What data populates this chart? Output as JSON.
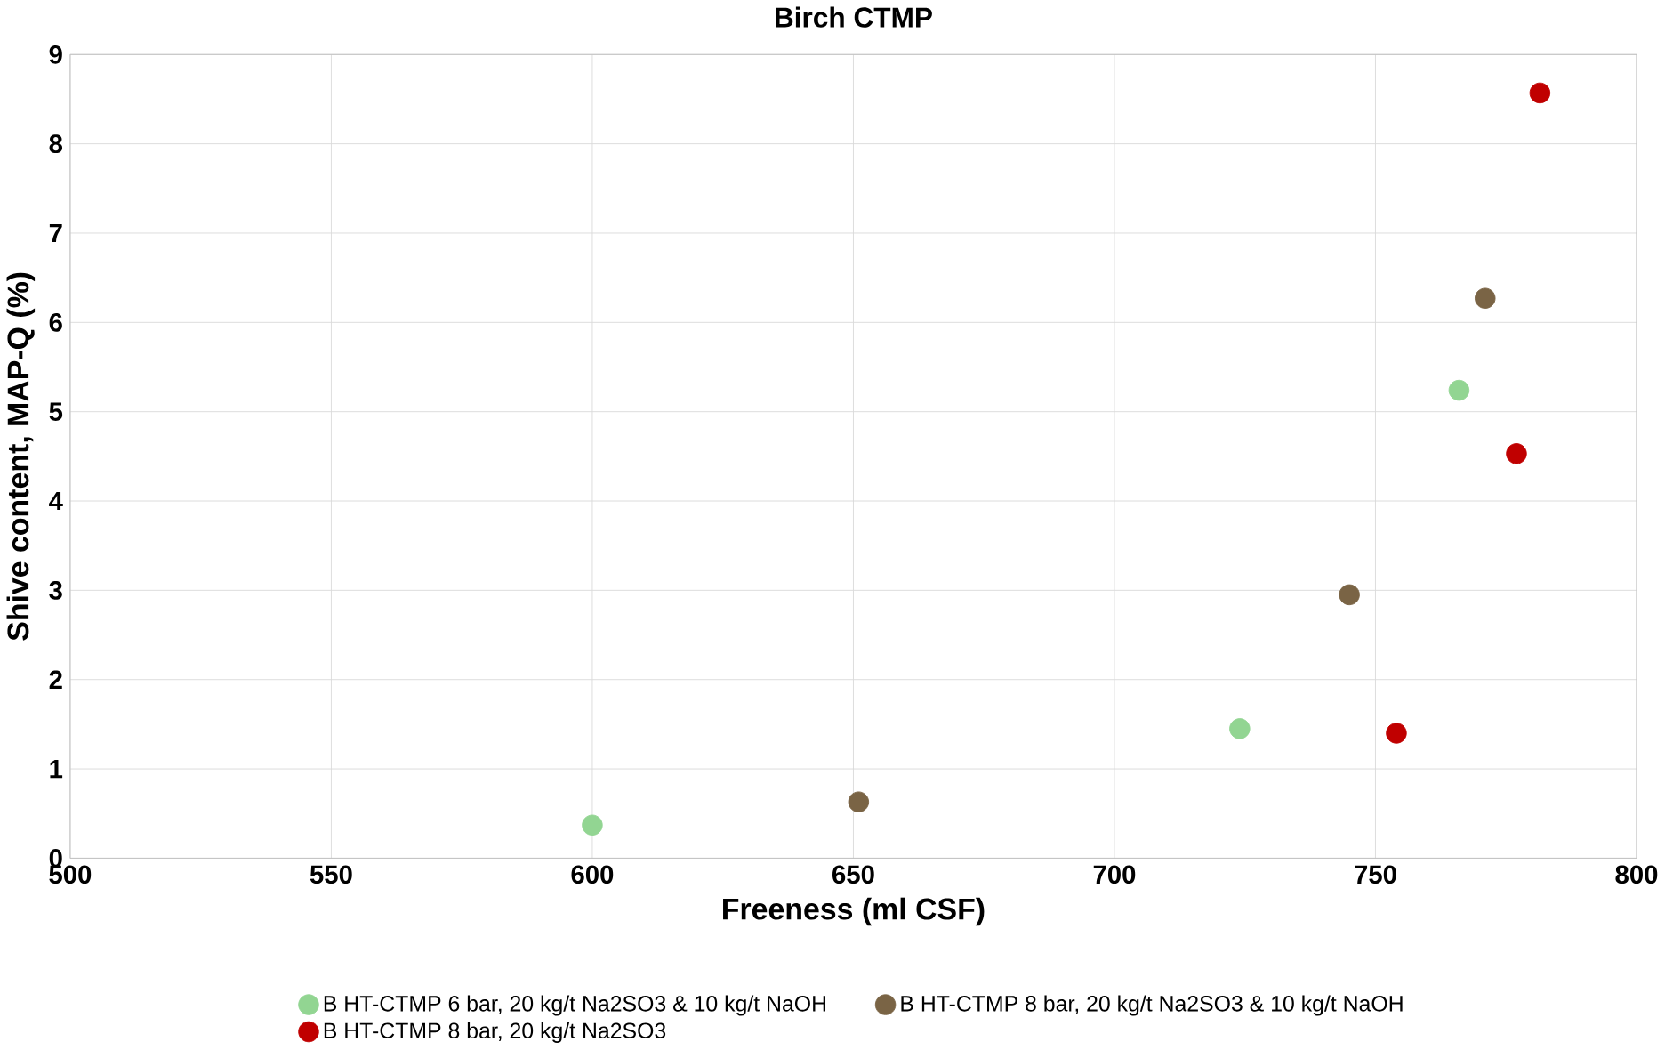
{
  "chart_data": {
    "type": "scatter",
    "title": "Birch CTMP",
    "xlabel": "Freeness (ml CSF)",
    "ylabel": "Shive content, MAP-Q (%)",
    "xlim": [
      500,
      800
    ],
    "xticks": [
      500,
      550,
      600,
      650,
      700,
      750,
      800
    ],
    "ylim": [
      0,
      9
    ],
    "yticks": [
      0,
      1,
      2,
      3,
      4,
      5,
      6,
      7,
      8,
      9
    ],
    "grid": true,
    "legend": "bottom",
    "marker": "circle",
    "series": [
      {
        "name": "B HT-CTMP 6 bar, 20 kg/t Na2SO3 & 10 kg/t NaOH",
        "color": "#92d592",
        "x": [
          600,
          724,
          766
        ],
        "values": [
          0.37,
          1.45,
          5.24
        ]
      },
      {
        "name": "B HT-CTMP 8 bar, 20 kg/t Na2SO3 & 10 kg/t NaOH",
        "color": "#7a6445",
        "x": [
          651,
          745,
          771
        ],
        "values": [
          0.63,
          2.95,
          6.27
        ]
      },
      {
        "name": "B HT-CTMP 8 bar, 20 kg/t Na2SO3",
        "color": "#c00000",
        "x": [
          754,
          777,
          781.5
        ],
        "values": [
          1.4,
          4.53,
          8.57
        ]
      }
    ]
  }
}
